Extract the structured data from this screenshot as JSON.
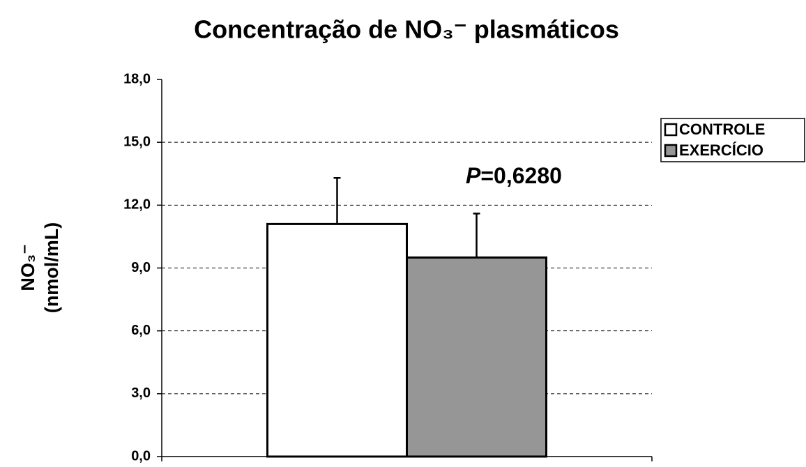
{
  "chart_data": {
    "type": "bar",
    "title": "Concentração de NO₃⁻ plasmáticos",
    "ylabel": [
      "NO₃⁻",
      "(nmol/mL)"
    ],
    "categories": [
      null
    ],
    "series": [
      {
        "name": "CONTROLE",
        "color": "#ffffff",
        "values": [
          11.1
        ],
        "errors": [
          2.2
        ]
      },
      {
        "name": "EXERCÍCIO",
        "color": "#969696",
        "values": [
          9.5
        ],
        "errors": [
          2.1
        ]
      }
    ],
    "annotation": {
      "italic": "P",
      "text": "=0,6280"
    },
    "ylim": [
      0,
      18
    ],
    "yticks": [
      {
        "value": 0,
        "label": "0,0"
      },
      {
        "value": 3,
        "label": "3,0"
      },
      {
        "value": 6,
        "label": "6,0"
      },
      {
        "value": 9,
        "label": "9,0"
      },
      {
        "value": 12,
        "label": "12,0"
      },
      {
        "value": 15,
        "label": "15,0"
      },
      {
        "value": 18,
        "label": "18,0"
      }
    ],
    "grid": true,
    "legend": "right"
  }
}
